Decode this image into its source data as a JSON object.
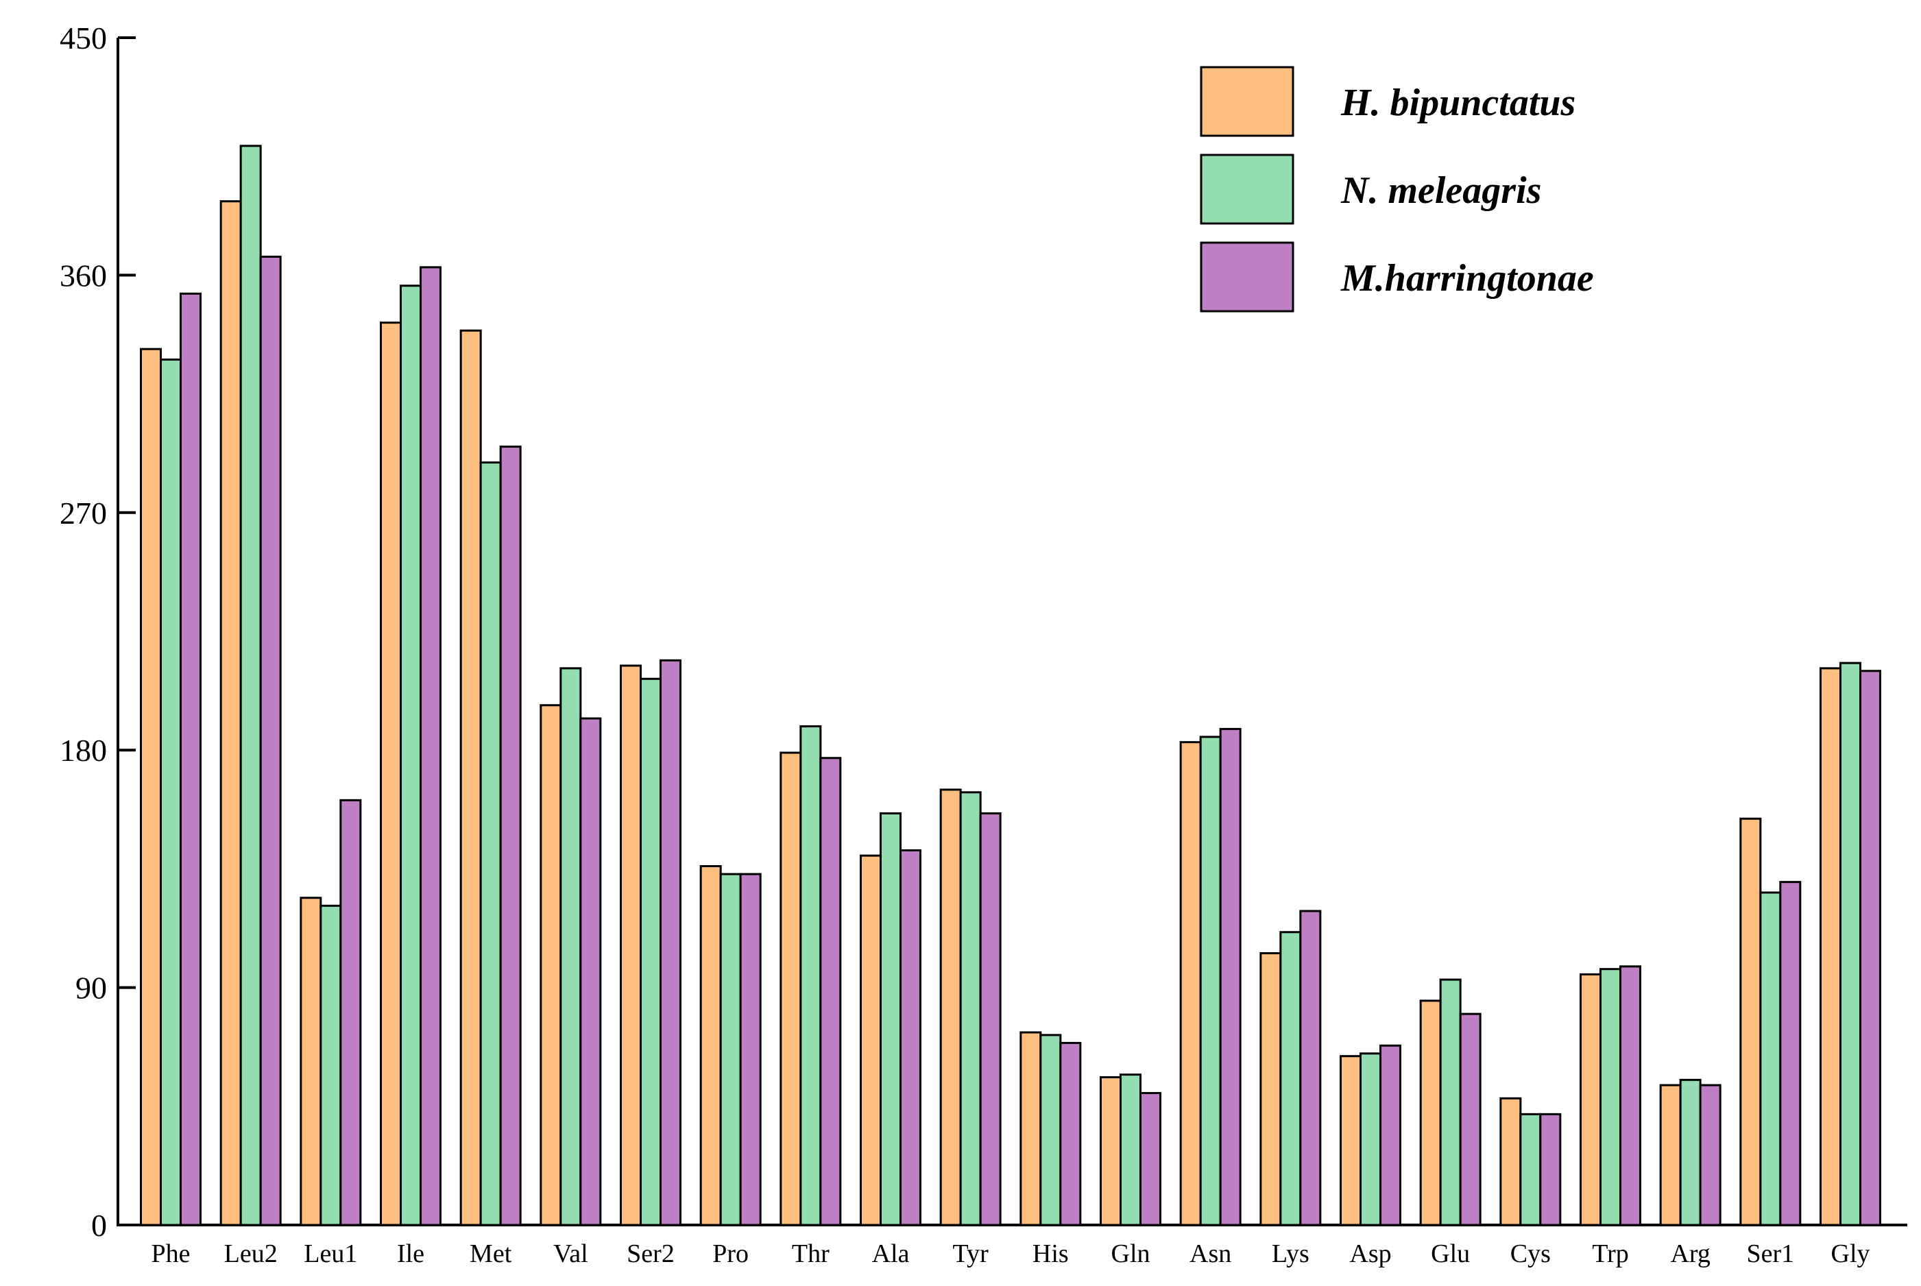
{
  "chart_data": {
    "type": "bar",
    "title": "",
    "xlabel": "",
    "ylabel": "",
    "ylim": [
      0,
      450
    ],
    "yticks": [
      0,
      90,
      180,
      270,
      360,
      450
    ],
    "grid": false,
    "legend_position": "top-right",
    "categories": [
      "Phe",
      "Leu2",
      "Leu1",
      "Ile",
      "Met",
      "Val",
      "Ser2",
      "Pro",
      "Thr",
      "Ala",
      "Tyr",
      "His",
      "Gln",
      "Asn",
      "Lys",
      "Asp",
      "Glu",
      "Cys",
      "Trp",
      "Arg",
      "Ser1",
      "Gly"
    ],
    "series": [
      {
        "name": "H. bipunctatus",
        "color": "#FDBF7F",
        "values": [
          332,
          388,
          124,
          342,
          339,
          197,
          212,
          136,
          179,
          140,
          165,
          73,
          56,
          183,
          103,
          64,
          85,
          48,
          95,
          53,
          154,
          211
        ]
      },
      {
        "name": "N. meleagris",
        "color": "#93DDB1",
        "values": [
          328,
          409,
          121,
          356,
          289,
          211,
          207,
          133,
          189,
          156,
          164,
          72,
          57,
          185,
          111,
          65,
          93,
          42,
          97,
          55,
          126,
          213
        ]
      },
      {
        "name": "M.harringtonae",
        "color": "#BF7FC5",
        "values": [
          353,
          367,
          161,
          363,
          295,
          192,
          214,
          133,
          177,
          142,
          156,
          69,
          50,
          188,
          119,
          68,
          80,
          42,
          98,
          53,
          130,
          210
        ]
      }
    ]
  }
}
